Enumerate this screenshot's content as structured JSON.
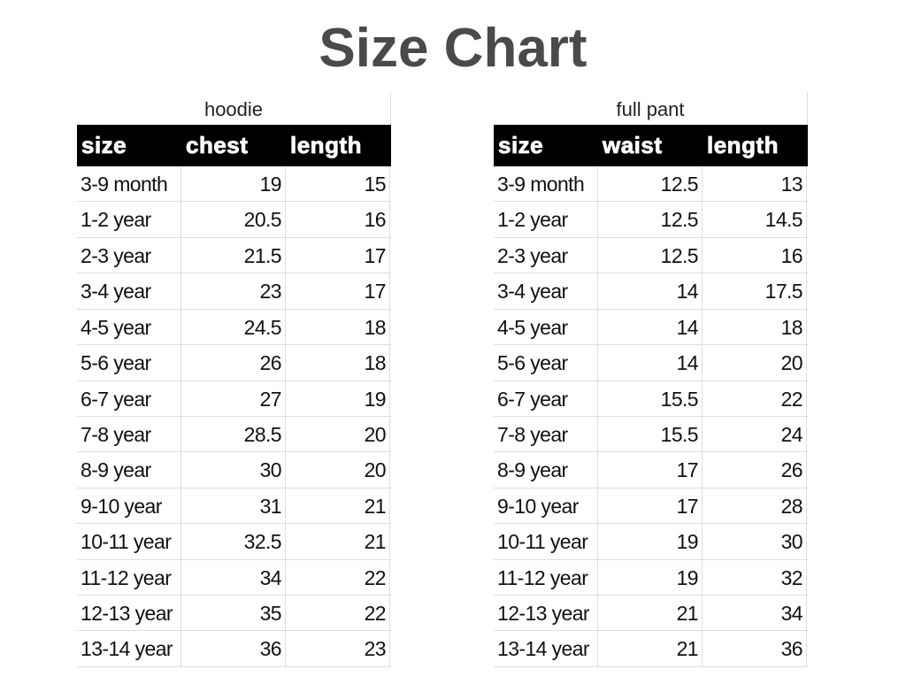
{
  "title": "Size Chart",
  "tables": [
    {
      "caption": "hoodie",
      "headers": [
        "size",
        "chest",
        "length"
      ],
      "rows": [
        [
          "3-9 month",
          "19",
          "15"
        ],
        [
          "1-2 year",
          "20.5",
          "16"
        ],
        [
          "2-3 year",
          "21.5",
          "17"
        ],
        [
          "3-4 year",
          "23",
          "17"
        ],
        [
          "4-5 year",
          "24.5",
          "18"
        ],
        [
          "5-6 year",
          "26",
          "18"
        ],
        [
          "6-7 year",
          "27",
          "19"
        ],
        [
          "7-8 year",
          "28.5",
          "20"
        ],
        [
          "8-9 year",
          "30",
          "20"
        ],
        [
          "9-10 year",
          "31",
          "21"
        ],
        [
          "10-11 year",
          "32.5",
          "21"
        ],
        [
          "11-12 year",
          "34",
          "22"
        ],
        [
          "12-13 year",
          "35",
          "22"
        ],
        [
          "13-14 year",
          "36",
          "23"
        ]
      ]
    },
    {
      "caption": "full pant",
      "headers": [
        "size",
        "waist",
        "length"
      ],
      "rows": [
        [
          "3-9 month",
          "12.5",
          "13"
        ],
        [
          "1-2 year",
          "12.5",
          "14.5"
        ],
        [
          "2-3 year",
          "12.5",
          "16"
        ],
        [
          "3-4 year",
          "14",
          "17.5"
        ],
        [
          "4-5 year",
          "14",
          "18"
        ],
        [
          "5-6 year",
          "14",
          "20"
        ],
        [
          "6-7 year",
          "15.5",
          "22"
        ],
        [
          "7-8 year",
          "15.5",
          "24"
        ],
        [
          "8-9 year",
          "17",
          "26"
        ],
        [
          "9-10 year",
          "17",
          "28"
        ],
        [
          "10-11 year",
          "19",
          "30"
        ],
        [
          "11-12 year",
          "19",
          "32"
        ],
        [
          "12-13 year",
          "21",
          "34"
        ],
        [
          "13-14 year",
          "21",
          "36"
        ]
      ]
    }
  ]
}
